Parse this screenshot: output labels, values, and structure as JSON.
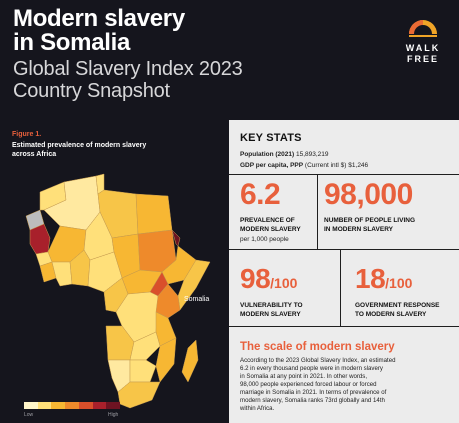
{
  "header": {
    "title_line1": "Modern slavery",
    "title_line2": "in Somalia",
    "subtitle_line1": "Global Slavery Index 2023",
    "subtitle_line2": "Country Snapshot"
  },
  "logo": {
    "line1": "WALK",
    "line2": "FREE",
    "icon": "sunrise-logo-icon"
  },
  "map": {
    "figure_label": "Figure 1.",
    "caption": "Estimated prevalence of modern slavery across Africa",
    "highlight_label": "Somalia",
    "legend_low": "Low",
    "legend_high": "High",
    "legend_colors": [
      "#fff6c9",
      "#ffe07a",
      "#f7b733",
      "#ee8a2b",
      "#d94f2b",
      "#a8202b",
      "#6d1322"
    ]
  },
  "key_stats": {
    "heading": "KEY STATS",
    "population_label": "Population (2021)",
    "population_value": "15,893,219",
    "gdp_label": "GDP per capita, PPP",
    "gdp_unit": "(Current intl $)",
    "gdp_value": "$1,246",
    "prevalence_value": "6.2",
    "prevalence_label_1": "PREVALENCE OF",
    "prevalence_label_2": "MODERN SLAVERY",
    "prevalence_sub": "per 1,000 people",
    "people_value": "98,000",
    "people_label_1": "NUMBER OF PEOPLE LIVING",
    "people_label_2": "IN MODERN SLAVERY",
    "vulnerability_value": "98",
    "vulnerability_den": "/100",
    "vulnerability_label_1": "VULNERABILITY TO",
    "vulnerability_label_2": "MODERN SLAVERY",
    "response_value": "18",
    "response_den": "/100",
    "response_label_1": "GOVERNMENT RESPONSE",
    "response_label_2": "TO MODERN SLAVERY"
  },
  "scale": {
    "heading": "The scale of modern slavery",
    "lines": [
      "According to the 2023 Global Slavery Index, an estimated",
      "6.2 in every thousand people were in modern slavery",
      "in Somalia at any point in 2021. In other words,",
      "98,000 people experienced forced labour or forced",
      "marriage in Somalia in 2021.  In terms of prevalence of",
      "modern slavery,  Somalia ranks 73rd globally and 14th",
      "within Africa."
    ]
  },
  "colors": {
    "accent": "#e8603c",
    "background_dark": "#15151d",
    "panel": "#ececec"
  }
}
